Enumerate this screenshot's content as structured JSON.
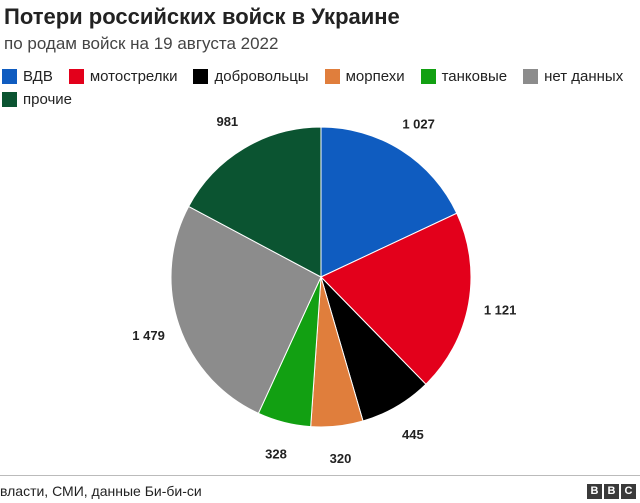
{
  "chart_data": {
    "type": "pie",
    "title": "Потери российских войск в Украине",
    "subtitle": "по родам войск на 19 августа 2022",
    "categories": [
      "ВДВ",
      "мотострелки",
      "добровольцы",
      "морпехи",
      "танковые",
      "нет данных",
      "прочие"
    ],
    "values": [
      1027,
      1121,
      445,
      320,
      328,
      1479,
      981
    ],
    "value_labels": [
      "1 027",
      "1 121",
      "445",
      "320",
      "328",
      "1 479",
      "981"
    ],
    "colors": [
      "#0f5cc0",
      "#e3001b",
      "#000000",
      "#e07e3c",
      "#12a012",
      "#8c8c8c",
      "#0b5431"
    ],
    "start_angle_deg": 0,
    "direction": "clockwise",
    "legend_placement": "top-left",
    "source": "власти, СМИ, данные Би-би-си",
    "logo": [
      "B",
      "B",
      "C"
    ]
  }
}
